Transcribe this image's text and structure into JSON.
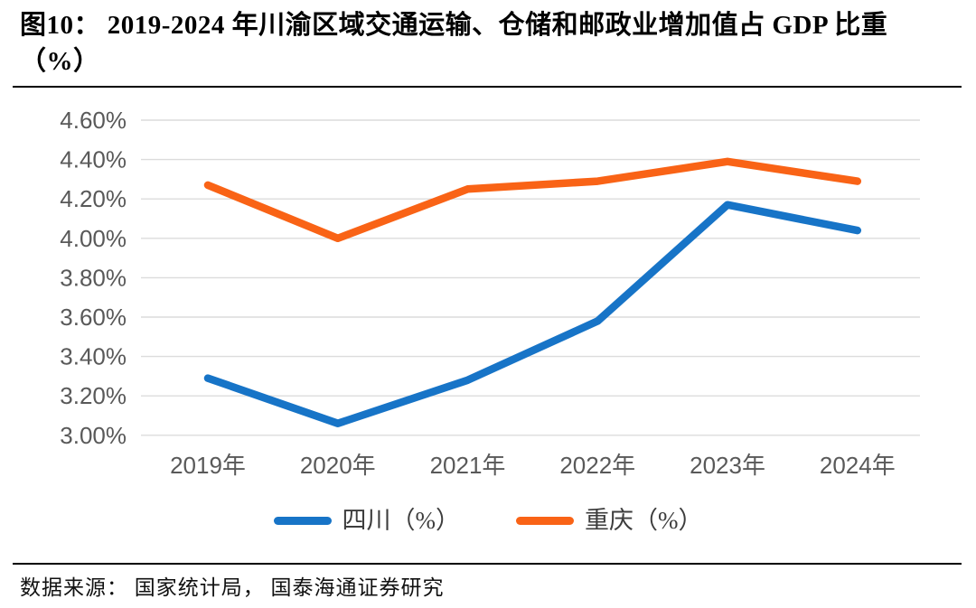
{
  "figure": {
    "title_line1": "图10：  2019-2024 年川渝区域交通运输、仓储和邮政业增加值占 GDP 比重",
    "title_line2": "（%）",
    "source": "数据来源：  国家统计局，  国泰海通证券研究"
  },
  "chart_data": {
    "type": "line",
    "title": "2019-2024 年川渝区域交通运输、仓储和邮政业增加值占 GDP 比重（%）",
    "categories": [
      "2019年",
      "2020年",
      "2021年",
      "2022年",
      "2023年",
      "2024年"
    ],
    "series": [
      {
        "name": "四川（%）",
        "color": "#1774C7",
        "values": [
          3.29,
          3.06,
          3.28,
          3.58,
          4.17,
          4.04
        ]
      },
      {
        "name": "重庆（%）",
        "color": "#F96316",
        "values": [
          4.27,
          4.0,
          4.25,
          4.29,
          4.39,
          4.29
        ]
      }
    ],
    "ylim": [
      3.0,
      4.6
    ],
    "ytick_step": 0.2,
    "ytick_labels": [
      "4.60%",
      "4.40%",
      "4.20%",
      "4.00%",
      "3.80%",
      "3.60%",
      "3.40%",
      "3.20%",
      "3.00%"
    ],
    "grid": "horizontal",
    "legend_position": "bottom",
    "axis_label_color": "#595959",
    "gridline_color": "#DCDCDC"
  }
}
